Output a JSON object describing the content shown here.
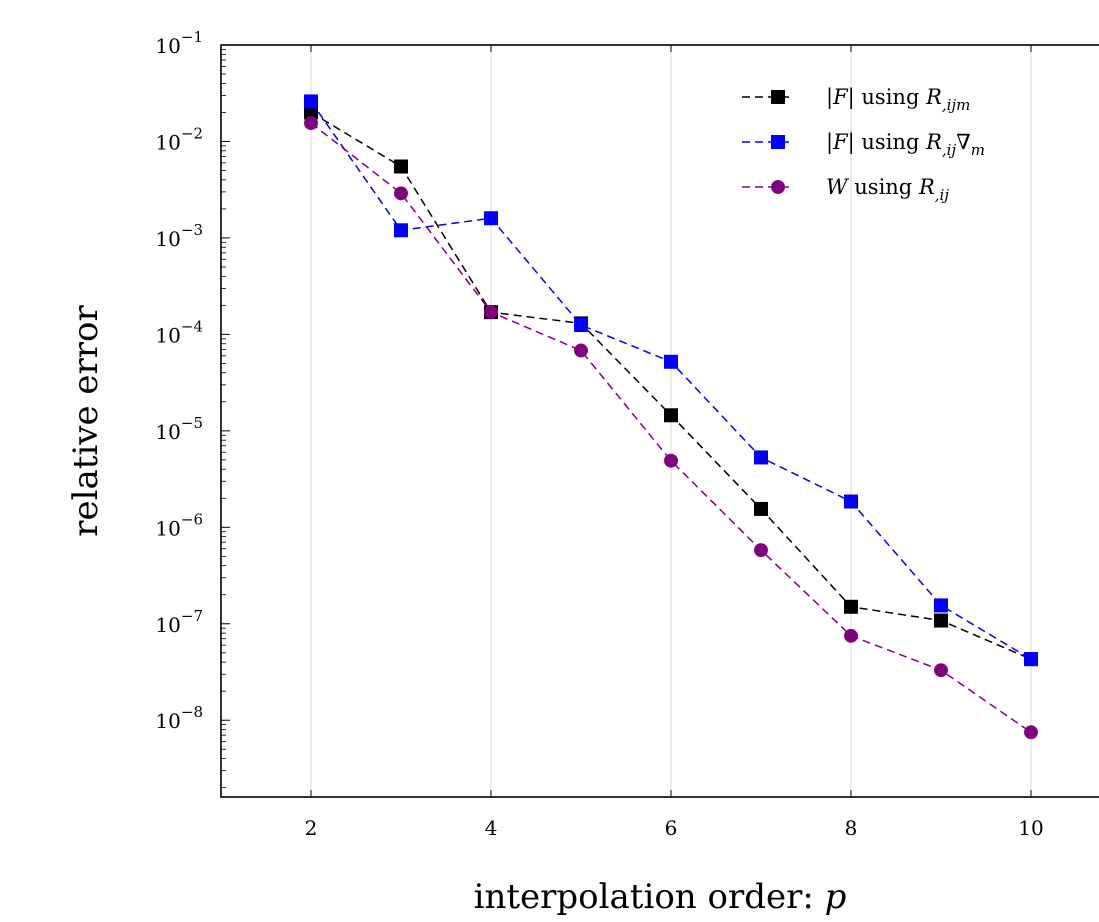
{
  "chart_data": {
    "type": "line",
    "xlabel_text": "interpolation order: ",
    "xlabel_var": "p",
    "ylabel": "relative error",
    "xlim": [
      1,
      11
    ],
    "ylim": [
      1.6e-09,
      0.1
    ],
    "yscale": "log",
    "xticks": [
      2,
      4,
      6,
      8,
      10
    ],
    "xtick_labels": [
      "2",
      "4",
      "6",
      "8",
      "10"
    ],
    "ytick_exponents": [
      "−1",
      "−2",
      "−3",
      "−4",
      "−5",
      "−6",
      "−7",
      "−8"
    ],
    "ytick_base": "10",
    "grid": "x-major",
    "legend_position": "top-right",
    "series": [
      {
        "name": "|F| using R,ijm",
        "legend_math": "|F|",
        "legend_mid": " using ",
        "legend_R": "R",
        "legend_sub": ",ijm",
        "legend_suffix": "",
        "legend_suffix_sub": "",
        "color": "#000000",
        "marker": "square",
        "x": [
          2,
          3,
          4,
          5,
          6,
          7,
          8,
          9,
          10
        ],
        "y": [
          0.02,
          0.0055,
          0.00017,
          0.00013,
          1.45e-05,
          1.55e-06,
          1.5e-07,
          1.08e-07,
          4.3e-08
        ]
      },
      {
        "name": "|F| using R,ij∇m",
        "legend_math": "|F|",
        "legend_mid": " using ",
        "legend_R": "R",
        "legend_sub": ",ij",
        "legend_suffix": "∇",
        "legend_suffix_sub": "m",
        "color": "#0000ff",
        "marker": "square",
        "x": [
          2,
          3,
          4,
          5,
          6,
          7,
          8,
          9,
          10
        ],
        "y": [
          0.026,
          0.0012,
          0.0016,
          0.000125,
          5.2e-05,
          5.3e-06,
          1.85e-06,
          1.55e-07,
          4.3e-08
        ]
      },
      {
        "name": "W using R,ij",
        "legend_math": "W",
        "legend_mid": " using ",
        "legend_R": "R",
        "legend_sub": ",ij",
        "legend_suffix": "",
        "legend_suffix_sub": "",
        "color": "#800080",
        "marker": "circle",
        "x": [
          2,
          3,
          4,
          5,
          6,
          7,
          8,
          9,
          10
        ],
        "y": [
          0.0155,
          0.0029,
          0.00017,
          6.8e-05,
          4.9e-06,
          5.8e-07,
          7.5e-08,
          3.3e-08,
          7.5e-09
        ]
      }
    ]
  }
}
